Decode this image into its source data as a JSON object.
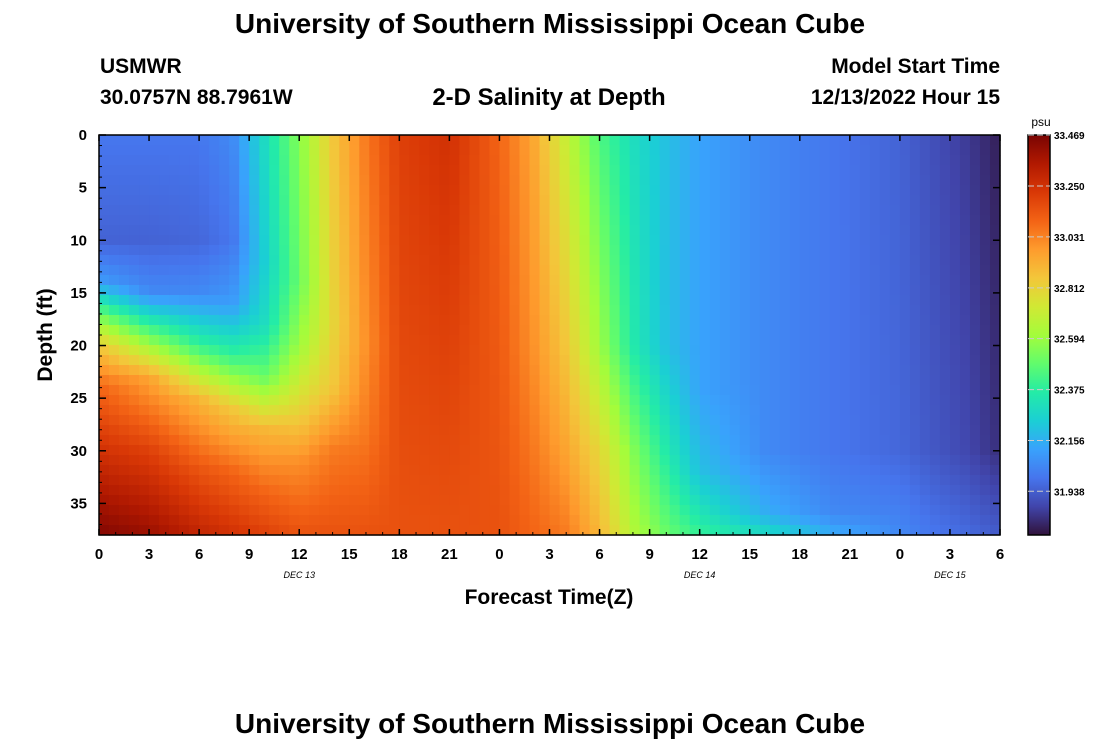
{
  "header": {
    "title": "University of Southern Mississippi Ocean Cube",
    "station_name": "USMWR",
    "station_coords": "30.0757N  88.7961W",
    "subtitle": "2-D Salinity at Depth",
    "start_label": "Model Start Time",
    "start_value": "12/13/2022 Hour 15"
  },
  "footer": {
    "title": "University of Southern Mississippi Ocean Cube"
  },
  "chart_data": {
    "type": "heatmap",
    "xlabel": "Forecast Time(Z)",
    "ylabel": "Depth (ft)",
    "x_range_hours": [
      0,
      54
    ],
    "x_ticks": [
      "0",
      "3",
      "6",
      "9",
      "12",
      "15",
      "18",
      "21",
      "0",
      "3",
      "6",
      "9",
      "12",
      "15",
      "18",
      "21",
      "0",
      "3",
      "6"
    ],
    "date_labels": [
      {
        "label": "DEC 13",
        "hour": 12
      },
      {
        "label": "DEC 14",
        "hour": 36
      },
      {
        "label": "DEC 15",
        "hour": 51
      }
    ],
    "y_range_ft": [
      0,
      38
    ],
    "y_ticks": [
      0,
      5,
      10,
      15,
      20,
      25,
      30,
      35
    ],
    "y_inverted": true,
    "colorbar": {
      "unit": "psu",
      "min": 31.75,
      "max": 33.469,
      "labels": [
        "33.469",
        "33.250",
        "33.031",
        "32.812",
        "32.594",
        "32.375",
        "32.156",
        "31.938"
      ],
      "colors": [
        "#30123b",
        "#4145ab",
        "#4675ed",
        "#39a2fc",
        "#1bcfd4",
        "#24eca6",
        "#61fc6c",
        "#a4fc3b",
        "#d1e834",
        "#f3c63a",
        "#fe9b2d",
        "#f36315",
        "#d93806",
        "#b11901",
        "#7a0402"
      ]
    },
    "salinity_psu": [
      {
        "hour": 0,
        "depth_profile": [
          [
            0,
            32.0
          ],
          [
            10,
            31.95
          ],
          [
            14,
            32.1
          ],
          [
            17,
            32.5
          ],
          [
            20,
            32.85
          ],
          [
            24,
            33.1
          ],
          [
            30,
            33.25
          ],
          [
            38,
            33.45
          ]
        ]
      },
      {
        "hour": 3,
        "depth_profile": [
          [
            0,
            32.0
          ],
          [
            10,
            31.95
          ],
          [
            15,
            32.05
          ],
          [
            19,
            32.5
          ],
          [
            23,
            32.95
          ],
          [
            30,
            33.2
          ],
          [
            38,
            33.4
          ]
        ]
      },
      {
        "hour": 6,
        "depth_profile": [
          [
            0,
            32.0
          ],
          [
            10,
            31.96
          ],
          [
            15,
            32.05
          ],
          [
            20,
            32.4
          ],
          [
            25,
            32.9
          ],
          [
            32,
            33.15
          ],
          [
            38,
            33.3
          ]
        ]
      },
      {
        "hour": 8,
        "depth_profile": [
          [
            0,
            32.05
          ],
          [
            10,
            32.0
          ],
          [
            16,
            32.1
          ],
          [
            21,
            32.4
          ],
          [
            26,
            32.85
          ],
          [
            32,
            33.1
          ],
          [
            38,
            33.25
          ]
        ]
      },
      {
        "hour": 10,
        "depth_profile": [
          [
            0,
            32.3
          ],
          [
            12,
            32.25
          ],
          [
            18,
            32.3
          ],
          [
            23,
            32.5
          ],
          [
            28,
            32.9
          ],
          [
            34,
            33.1
          ],
          [
            38,
            33.2
          ]
        ]
      },
      {
        "hour": 12,
        "depth_profile": [
          [
            0,
            32.55
          ],
          [
            14,
            32.5
          ],
          [
            20,
            32.6
          ],
          [
            26,
            32.8
          ],
          [
            31,
            33.0
          ],
          [
            38,
            33.15
          ]
        ]
      },
      {
        "hour": 14,
        "depth_profile": [
          [
            0,
            32.85
          ],
          [
            18,
            32.8
          ],
          [
            24,
            32.85
          ],
          [
            30,
            33.05
          ],
          [
            38,
            33.15
          ]
        ]
      },
      {
        "hour": 16,
        "depth_profile": [
          [
            0,
            33.05
          ],
          [
            20,
            33.0
          ],
          [
            28,
            33.05
          ],
          [
            38,
            33.15
          ]
        ]
      },
      {
        "hour": 18,
        "depth_profile": [
          [
            0,
            33.2
          ],
          [
            38,
            33.15
          ]
        ]
      },
      {
        "hour": 21,
        "depth_profile": [
          [
            0,
            33.25
          ],
          [
            38,
            33.15
          ]
        ]
      },
      {
        "hour": 24,
        "depth_profile": [
          [
            0,
            33.1
          ],
          [
            38,
            33.15
          ]
        ]
      },
      {
        "hour": 26,
        "depth_profile": [
          [
            0,
            32.95
          ],
          [
            20,
            33.0
          ],
          [
            38,
            33.1
          ]
        ]
      },
      {
        "hour": 28,
        "depth_profile": [
          [
            0,
            32.7
          ],
          [
            20,
            32.85
          ],
          [
            30,
            32.95
          ],
          [
            38,
            33.05
          ]
        ]
      },
      {
        "hour": 30,
        "depth_profile": [
          [
            0,
            32.45
          ],
          [
            20,
            32.6
          ],
          [
            30,
            32.8
          ],
          [
            38,
            32.9
          ]
        ]
      },
      {
        "hour": 32,
        "depth_profile": [
          [
            0,
            32.3
          ],
          [
            20,
            32.35
          ],
          [
            30,
            32.55
          ],
          [
            38,
            32.65
          ]
        ]
      },
      {
        "hour": 34,
        "depth_profile": [
          [
            0,
            32.2
          ],
          [
            20,
            32.2
          ],
          [
            30,
            32.35
          ],
          [
            38,
            32.5
          ]
        ]
      },
      {
        "hour": 36,
        "depth_profile": [
          [
            0,
            32.12
          ],
          [
            24,
            32.12
          ],
          [
            32,
            32.2
          ],
          [
            38,
            32.4
          ]
        ]
      },
      {
        "hour": 40,
        "depth_profile": [
          [
            0,
            32.05
          ],
          [
            30,
            32.05
          ],
          [
            36,
            32.15
          ],
          [
            38,
            32.3
          ]
        ]
      },
      {
        "hour": 44,
        "depth_profile": [
          [
            0,
            32.0
          ],
          [
            30,
            32.0
          ],
          [
            36,
            32.05
          ],
          [
            38,
            32.15
          ]
        ]
      },
      {
        "hour": 48,
        "depth_profile": [
          [
            0,
            31.95
          ],
          [
            30,
            31.96
          ],
          [
            38,
            32.05
          ]
        ]
      },
      {
        "hour": 50,
        "depth_profile": [
          [
            0,
            31.9
          ],
          [
            30,
            31.92
          ],
          [
            38,
            32.0
          ]
        ]
      },
      {
        "hour": 52,
        "depth_profile": [
          [
            0,
            31.85
          ],
          [
            30,
            31.88
          ],
          [
            38,
            31.97
          ]
        ]
      },
      {
        "hour": 54,
        "depth_profile": [
          [
            0,
            31.78
          ],
          [
            30,
            31.82
          ],
          [
            38,
            31.93
          ]
        ]
      }
    ]
  }
}
